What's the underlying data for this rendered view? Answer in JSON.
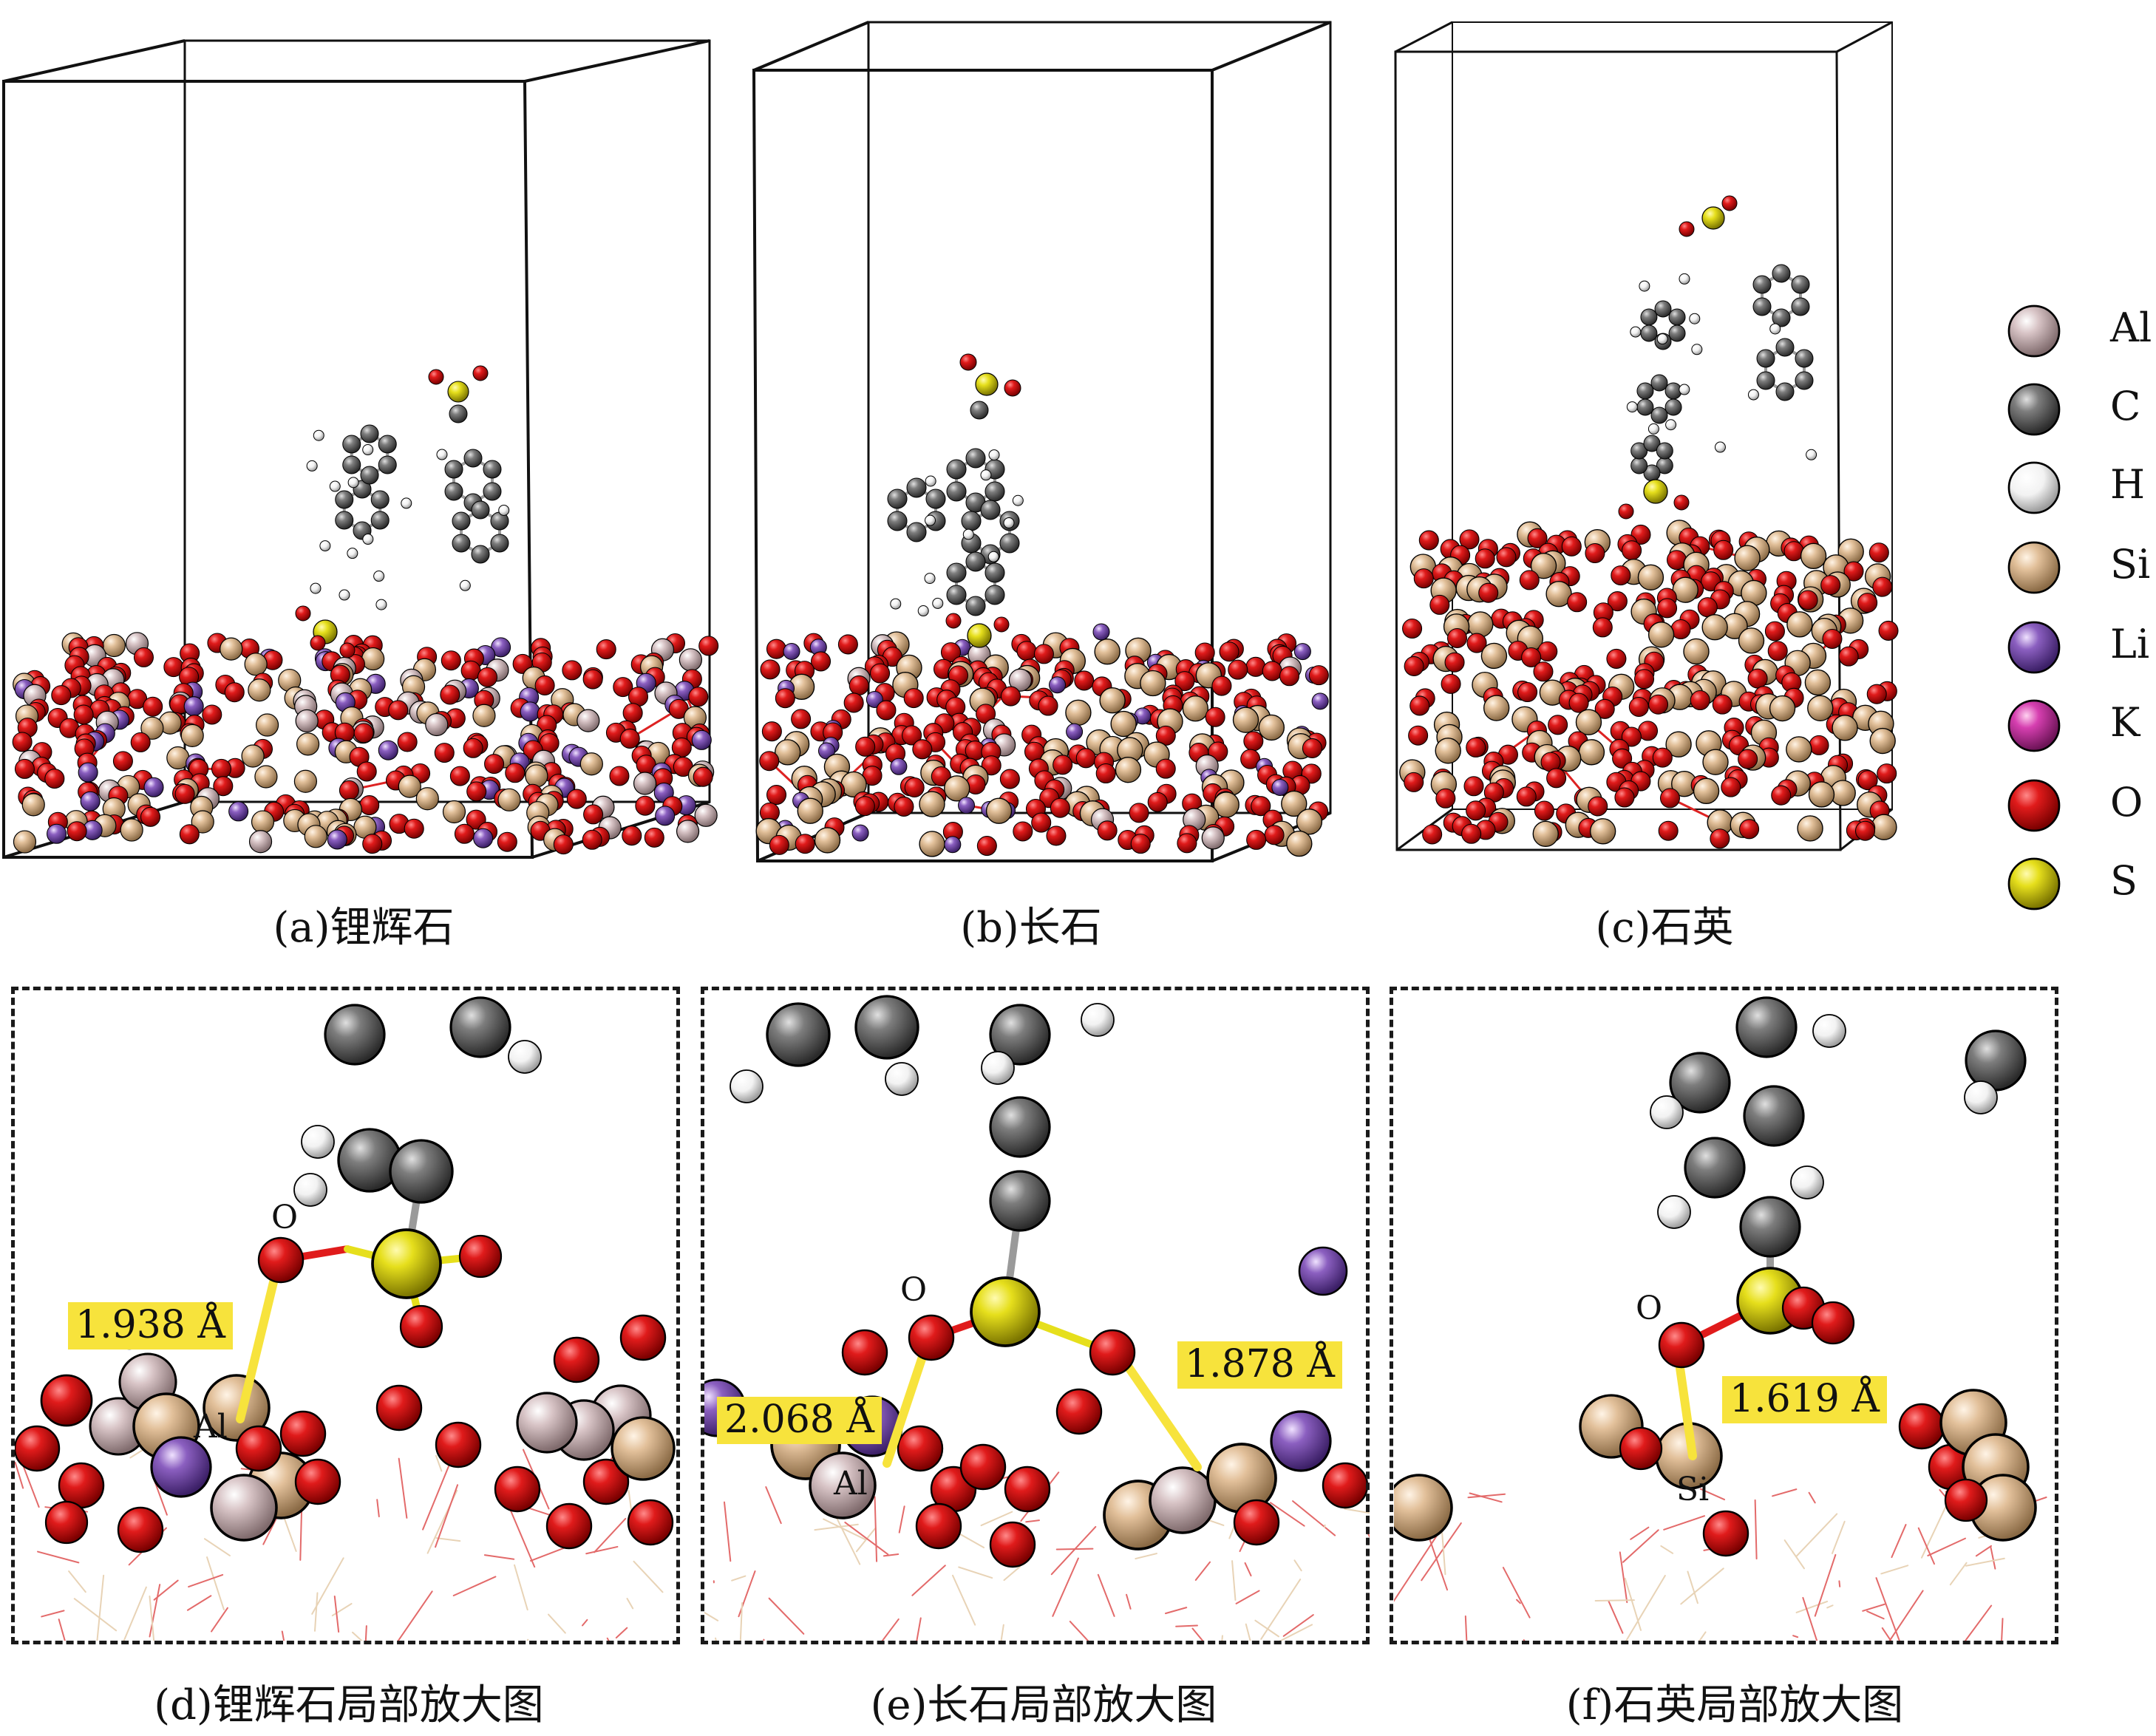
{
  "panels": [
    {
      "id": "a",
      "caption": "(a)锂辉石"
    },
    {
      "id": "b",
      "caption": "(b)长石"
    },
    {
      "id": "c",
      "caption": "(c)石英"
    },
    {
      "id": "d",
      "caption": "(d)锂辉石局部放大图",
      "distance": "1.938 Å",
      "atom_labels": [
        "O",
        "Al"
      ]
    },
    {
      "id": "e",
      "caption": "(e)长石局部放大图",
      "distances": [
        "2.068 Å",
        "1.878 Å"
      ],
      "atom_labels": [
        "O",
        "Al"
      ]
    },
    {
      "id": "f",
      "caption": "(f)石英局部放大图",
      "distance": "1.619 Å",
      "atom_labels": [
        "O",
        "Si"
      ]
    }
  ],
  "legend": [
    {
      "element": "Al",
      "color": "#d8c4c6"
    },
    {
      "element": "C",
      "color": "#7d7d7d"
    },
    {
      "element": "H",
      "color": "#f2f2f2"
    },
    {
      "element": "Si",
      "color": "#e2c09a"
    },
    {
      "element": "Li",
      "color": "#a782d4"
    },
    {
      "element": "K",
      "color": "#d63fb0"
    },
    {
      "element": "O",
      "color": "#e01b1b"
    },
    {
      "element": "S",
      "color": "#e6df1c"
    }
  ]
}
